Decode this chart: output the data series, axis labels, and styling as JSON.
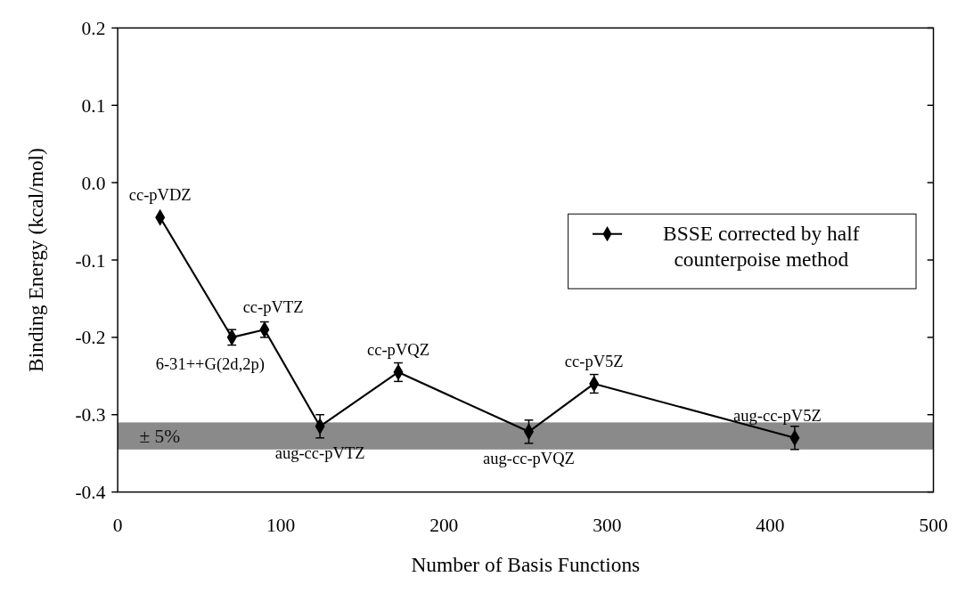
{
  "chart_data": {
    "type": "line",
    "xlabel": "Number of Basis Functions",
    "ylabel": "Binding Energy (kcal/mol)",
    "x": [
      26,
      70,
      90,
      124,
      172,
      252,
      292,
      415
    ],
    "series": [
      {
        "name": "BSSE corrected by half counterpoise method",
        "color": "#000000",
        "values": [
          -0.045,
          -0.2,
          -0.19,
          -0.315,
          -0.245,
          -0.322,
          -0.26,
          -0.33
        ],
        "errors": [
          null,
          0.01,
          0.01,
          0.015,
          0.012,
          0.015,
          0.012,
          0.015
        ]
      }
    ],
    "xlim": [
      0,
      500
    ],
    "xticks": [
      0,
      100,
      200,
      300,
      400,
      500
    ],
    "ylim": [
      -0.4,
      0.2
    ],
    "yticks": [
      {
        "value": -0.4,
        "label": "-0.4"
      },
      {
        "value": -0.3,
        "label": "-0.3"
      },
      {
        "value": -0.2,
        "label": "-0.2"
      },
      {
        "value": -0.1,
        "label": "-0.1"
      },
      {
        "value": 0,
        "label": "0.0"
      },
      {
        "value": 0.1,
        "label": "0.1"
      },
      {
        "value": 0.2,
        "label": "0.2"
      }
    ],
    "bands": [
      {
        "axis": "y",
        "from": -0.345,
        "to": -0.31,
        "label": "± 5%",
        "color": "#8a8a8a"
      }
    ],
    "annotations": [
      {
        "text": "cc-pVDZ",
        "x": 26,
        "y": -0.045
      },
      {
        "text": "6-31++G(2d,2p)",
        "x": 70,
        "y": -0.2
      },
      {
        "text": "cc-pVTZ",
        "x": 90,
        "y": -0.19
      },
      {
        "text": "aug-cc-pVTZ",
        "x": 124,
        "y": -0.315
      },
      {
        "text": "cc-pVQZ",
        "x": 172,
        "y": -0.245
      },
      {
        "text": "aug-cc-pVQZ",
        "x": 252,
        "y": -0.322
      },
      {
        "text": "cc-pV5Z",
        "x": 292,
        "y": -0.26
      },
      {
        "text": "aug-cc-pV5Z",
        "x": 415,
        "y": -0.33
      }
    ],
    "marker": "diamond",
    "line_style": "solid",
    "legend": "right",
    "grid": false
  }
}
